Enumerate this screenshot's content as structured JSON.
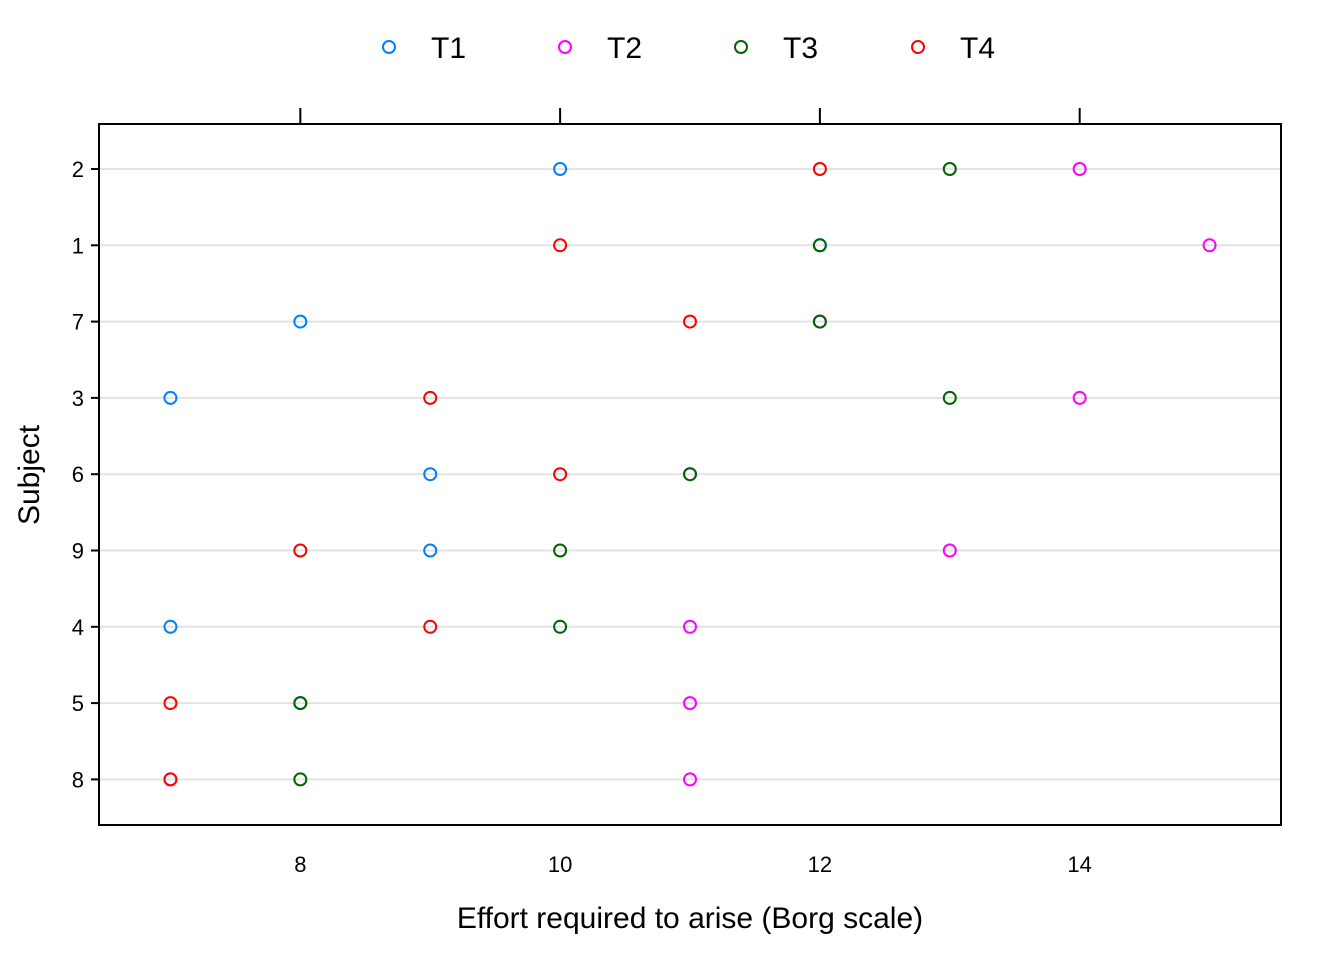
{
  "chart_data": {
    "type": "scatter",
    "xlabel": "Effort required to arise (Borg scale)",
    "ylabel": "Subject",
    "xlim": [
      6.45,
      15.55
    ],
    "xticks": [
      8,
      10,
      12,
      14
    ],
    "categories": [
      "2",
      "1",
      "7",
      "3",
      "6",
      "9",
      "4",
      "5",
      "8"
    ],
    "legend_position": "top",
    "grid": "horizontal",
    "series": [
      {
        "name": "T1",
        "color": "#0080ff",
        "points": [
          {
            "subject": "2",
            "x": 10
          },
          {
            "subject": "1",
            "x": 12
          },
          {
            "subject": "7",
            "x": 8
          },
          {
            "subject": "3",
            "x": 7
          },
          {
            "subject": "6",
            "x": 9
          },
          {
            "subject": "9",
            "x": 9
          },
          {
            "subject": "4",
            "x": 7
          },
          {
            "subject": "5",
            "x": 8
          },
          {
            "subject": "8",
            "x": 7
          }
        ]
      },
      {
        "name": "T2",
        "color": "#ff00ff",
        "points": [
          {
            "subject": "2",
            "x": 14
          },
          {
            "subject": "1",
            "x": 15
          },
          {
            "subject": "7",
            "x": 12
          },
          {
            "subject": "3",
            "x": 14
          },
          {
            "subject": "6",
            "x": 11
          },
          {
            "subject": "9",
            "x": 13
          },
          {
            "subject": "4",
            "x": 11
          },
          {
            "subject": "5",
            "x": 11
          },
          {
            "subject": "8",
            "x": 11
          }
        ]
      },
      {
        "name": "T3",
        "color": "#006400",
        "points": [
          {
            "subject": "2",
            "x": 13
          },
          {
            "subject": "1",
            "x": 12
          },
          {
            "subject": "7",
            "x": 12
          },
          {
            "subject": "3",
            "x": 13
          },
          {
            "subject": "6",
            "x": 11
          },
          {
            "subject": "9",
            "x": 10
          },
          {
            "subject": "4",
            "x": 10
          },
          {
            "subject": "5",
            "x": 8
          },
          {
            "subject": "8",
            "x": 8
          }
        ]
      },
      {
        "name": "T4",
        "color": "#ff0000",
        "points": [
          {
            "subject": "2",
            "x": 12
          },
          {
            "subject": "1",
            "x": 10
          },
          {
            "subject": "7",
            "x": 11
          },
          {
            "subject": "3",
            "x": 9
          },
          {
            "subject": "6",
            "x": 10
          },
          {
            "subject": "9",
            "x": 8
          },
          {
            "subject": "4",
            "x": 9
          },
          {
            "subject": "5",
            "x": 7
          },
          {
            "subject": "8",
            "x": 7
          }
        ]
      }
    ]
  }
}
